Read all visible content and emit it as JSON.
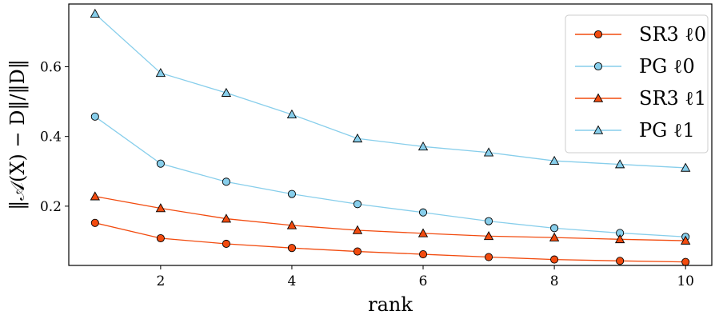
{
  "chart_data": {
    "type": "line",
    "title": "",
    "xlabel": "rank",
    "ylabel": "‖𝒜(X) − D‖/‖D‖",
    "xlim": [
      0.6,
      10.4
    ],
    "ylim": [
      0.03,
      0.78
    ],
    "xticks": [
      2,
      4,
      6,
      8,
      10
    ],
    "yticks": [
      0.2,
      0.4,
      0.6
    ],
    "xtick_labels": [
      "2",
      "4",
      "6",
      "8",
      "10"
    ],
    "ytick_labels": [
      "0.2",
      "0.4",
      "0.6"
    ],
    "grid": false,
    "legend_position": "top-right",
    "x": [
      1,
      2,
      3,
      4,
      5,
      6,
      7,
      8,
      9,
      10
    ],
    "series": [
      {
        "name": "SR3 ℓ0",
        "marker": "circle",
        "color": "#f24b0f",
        "values": [
          0.152,
          0.108,
          0.092,
          0.08,
          0.07,
          0.062,
          0.054,
          0.047,
          0.043,
          0.04
        ]
      },
      {
        "name": "PG ℓ0",
        "marker": "circle",
        "color": "#87ceeb",
        "values": [
          0.457,
          0.322,
          0.27,
          0.235,
          0.206,
          0.182,
          0.157,
          0.137,
          0.123,
          0.112
        ]
      },
      {
        "name": "SR3 ℓ1",
        "marker": "triangle",
        "color": "#f24b0f",
        "values": [
          0.228,
          0.194,
          0.164,
          0.145,
          0.131,
          0.122,
          0.114,
          0.11,
          0.105,
          0.101
        ]
      },
      {
        "name": "PG ℓ1",
        "marker": "triangle",
        "color": "#87ceeb",
        "values": [
          0.752,
          0.582,
          0.525,
          0.463,
          0.394,
          0.371,
          0.354,
          0.33,
          0.32,
          0.31
        ]
      }
    ]
  }
}
